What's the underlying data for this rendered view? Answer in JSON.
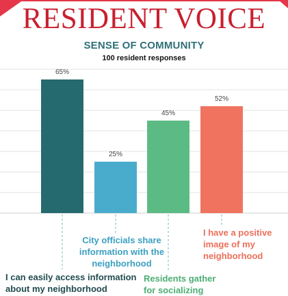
{
  "header": {
    "title": "RESIDENT VOICE"
  },
  "chart_data": {
    "type": "bar",
    "title": "SENSE OF COMMUNITY",
    "subtitle": "100 resident responses",
    "categories": [
      "I can easily access information about my neighborhood",
      "City officials share information with the neighborhood",
      "Residents gather for socializing",
      "I have a positive image of my neighborhood"
    ],
    "values": [
      65,
      25,
      45,
      52
    ],
    "data_labels": [
      "65%",
      "25%",
      "45%",
      "52%"
    ],
    "unit": "%",
    "ylim": [
      0,
      70
    ],
    "grid": true,
    "colors": [
      "#246a6e",
      "#4aaccc",
      "#5cbb84",
      "#ef735f"
    ],
    "category_label_colors": [
      "#214b4f",
      "#3aa0c0",
      "#4cae74",
      "#ec6f5b"
    ],
    "leader_line_color": "#7ab8bd"
  },
  "labels": {
    "cat1": "I can easily access information about my neighborhood",
    "cat2": "City officials share information with the neighborhood",
    "cat3": "Residents gather for socializing",
    "cat4": "I have a positive image of my neighborhood"
  }
}
